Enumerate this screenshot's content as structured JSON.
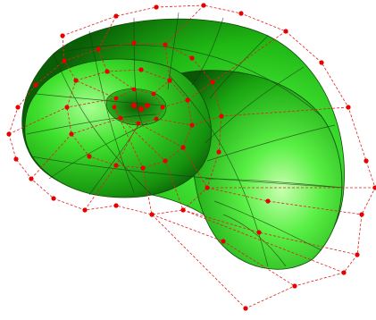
{
  "scene": {
    "subject": "nautilus-spiral-surface",
    "colors": {
      "background": "#ffffff",
      "surface_light": "#9dff8a",
      "surface_mid": "#26d61a",
      "surface_dark": "#0c6a08",
      "isoline": "#1a3a14",
      "control_polygon": "#e02020",
      "control_point": "#e60000"
    }
  }
}
